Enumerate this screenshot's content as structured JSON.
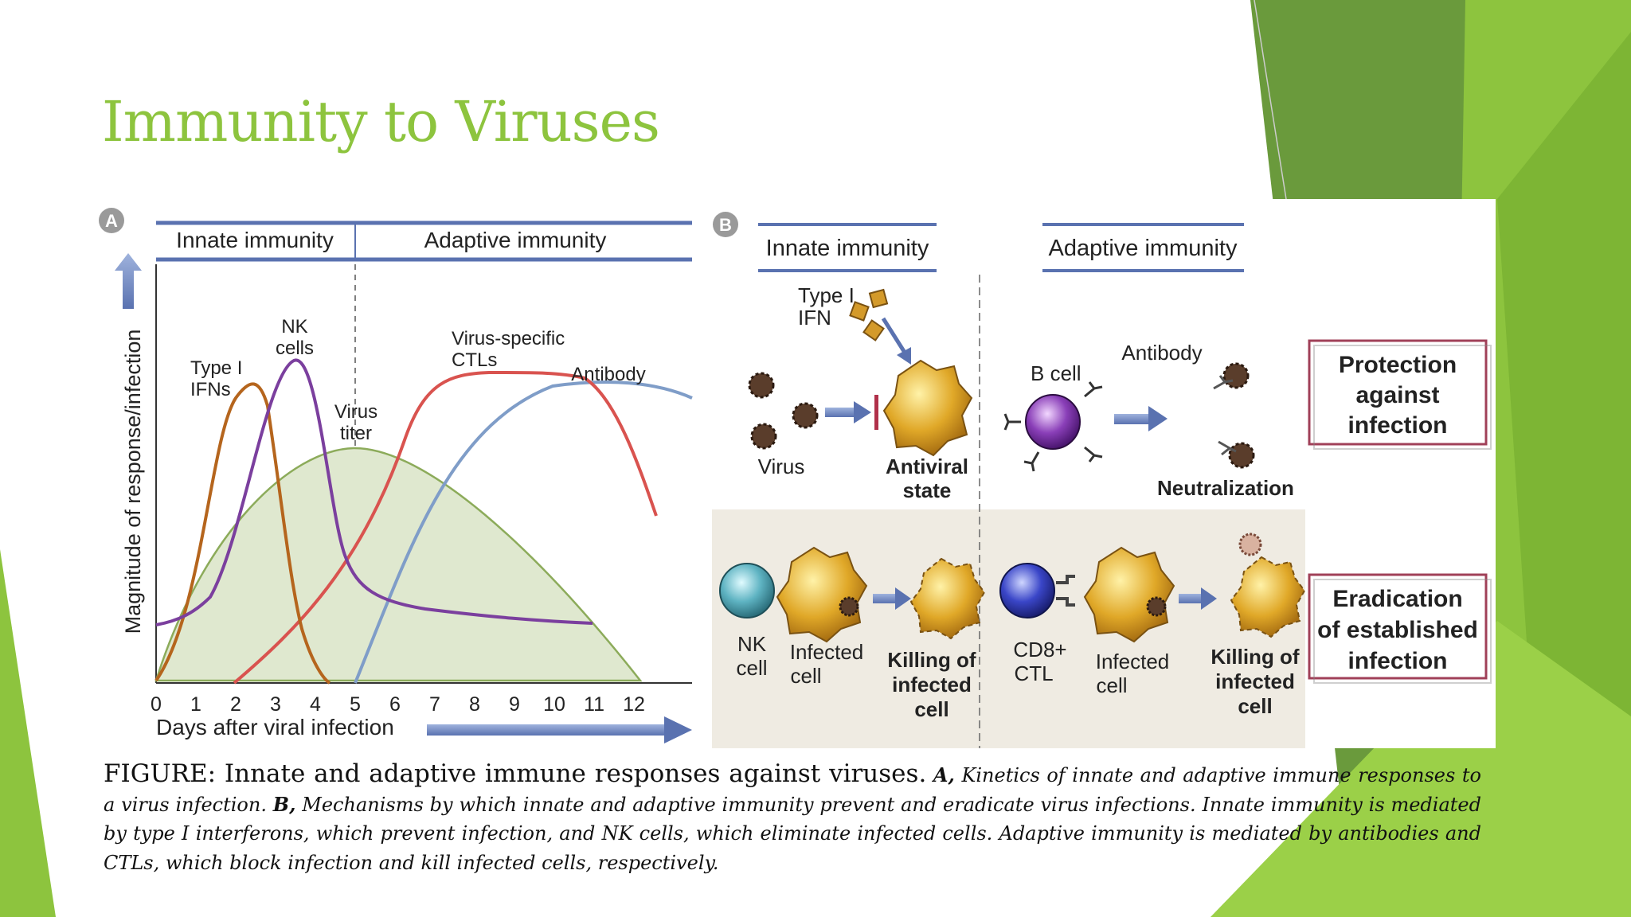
{
  "slide": {
    "title": "Immunity to Viruses",
    "theme_color": "#8dc43e"
  },
  "panel_a": {
    "letter": "A",
    "header_innate": "Innate immunity",
    "header_adaptive": "Adaptive immunity",
    "y_axis_label": "Magnitude of response/infection",
    "x_axis_label": "Days after viral infection",
    "x_ticks": [
      "0",
      "1",
      "2",
      "3",
      "4",
      "5",
      "6",
      "7",
      "8",
      "9",
      "10",
      "11",
      "12"
    ],
    "labels": {
      "type1_ifns_line1": "Type I",
      "type1_ifns_line2": "IFNs",
      "nk_line1": "NK",
      "nk_line2": "cells",
      "virus_titer_line1": "Virus",
      "virus_titer_line2": "titer",
      "ctl_line1": "Virus-specific",
      "ctl_line2": "CTLs",
      "antibody": "Antibody"
    },
    "colors": {
      "type1_ifns": "#b5651d",
      "nk_cells": "#7b3f9e",
      "virus_titer": "#8cab5a",
      "ctls": "#d9534f",
      "antibody": "#7f9dc8"
    }
  },
  "panel_b": {
    "letter": "B",
    "header_innate": "Innate immunity",
    "header_adaptive": "Adaptive immunity",
    "top": {
      "type1_ifn_line1": "Type I",
      "type1_ifn_line2": "IFN",
      "virus": "Virus",
      "antiviral_line1": "Antiviral",
      "antiviral_line2": "state",
      "b_cell": "B cell",
      "antibody": "Antibody",
      "neutralization": "Neutralization",
      "box_line1": "Protection",
      "box_line2": "against",
      "box_line3": "infection"
    },
    "bottom": {
      "nk_line1": "NK",
      "nk_line2": "cell",
      "infected_line1": "Infected",
      "infected_line2": "cell",
      "killing_line1": "Killing of",
      "killing_line2": "infected",
      "killing_line3": "cell",
      "cd8_line1": "CD8+",
      "cd8_line2": "CTL",
      "infected2_line1": "Infected",
      "infected2_line2": "cell",
      "killing2_line1": "Killing of",
      "killing2_line2": "infected",
      "killing2_line3": "cell",
      "box_line1": "Eradication",
      "box_line2": "of established",
      "box_line3": "infection"
    }
  },
  "caption": {
    "lead": "FIGURE: Innate and adaptive immune responses against viruses.",
    "a_marker": "A,",
    "a_text": "Kinetics of innate and adaptive immune responses to a virus infection.",
    "b_marker": "B,",
    "b_text": "Mechanisms by which innate and adaptive immunity prevent and eradicate virus infections. Innate immunity is mediated by type I interferons, which prevent infection, and NK cells, which eliminate infected cells. Adaptive immunity is mediated by antibodies and CTLs, which block infection and kill infected cells, respectively."
  }
}
